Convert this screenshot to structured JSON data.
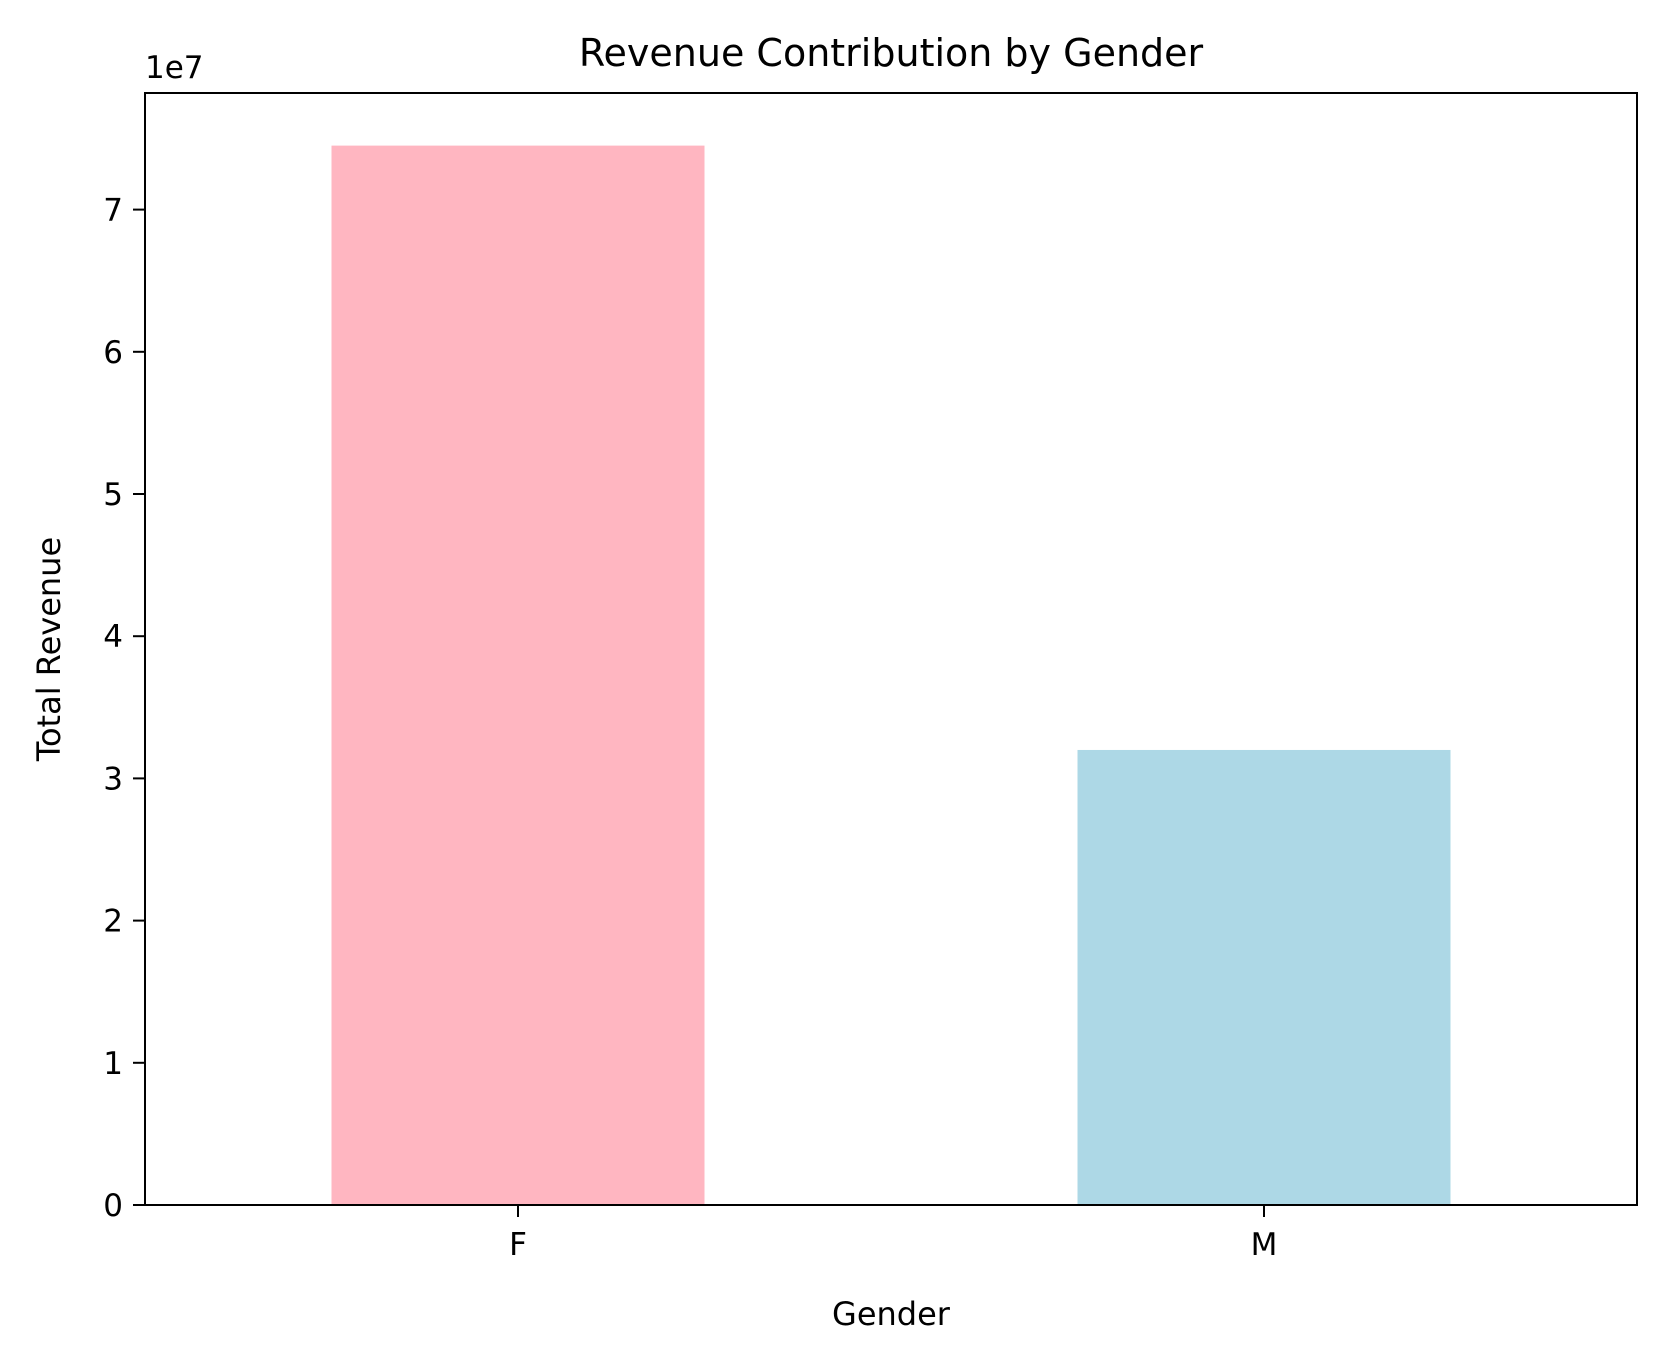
{
  "chart_data": {
    "type": "bar",
    "title": "Revenue Contribution by Gender",
    "xlabel": "Gender",
    "ylabel": "Total Revenue",
    "y_offset_label": "1e7",
    "categories": [
      "F",
      "M"
    ],
    "values": [
      74500000,
      32000000
    ],
    "colors": [
      "#ffb6c1",
      "#add8e6"
    ],
    "ylim": [
      0,
      78200000
    ],
    "y_ticks": [
      0,
      10000000,
      20000000,
      30000000,
      40000000,
      50000000,
      60000000,
      70000000
    ],
    "y_tick_labels": [
      "0",
      "1",
      "2",
      "3",
      "4",
      "5",
      "6",
      "7"
    ],
    "grid": false,
    "legend": "none"
  }
}
